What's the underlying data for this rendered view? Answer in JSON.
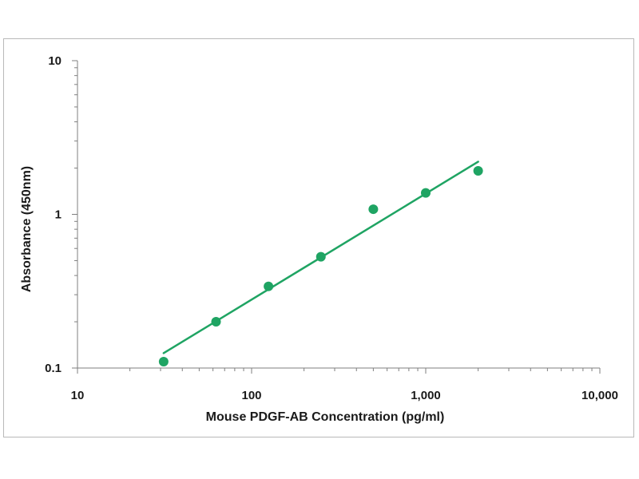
{
  "chart_data": {
    "type": "scatter",
    "title": "",
    "xlabel": "Mouse PDGF-AB Concentration (pg/ml)",
    "ylabel": "Absorbance (450nm)",
    "xscale": "log",
    "yscale": "log",
    "xlim": [
      10,
      10000
    ],
    "ylim": [
      0.1,
      10
    ],
    "x_tick_labels": [
      "10",
      "100",
      "1,000",
      "10,000"
    ],
    "y_tick_labels": [
      "0.1",
      "1",
      "10"
    ],
    "grid": false,
    "legend": "none",
    "color": "#1fa463",
    "series": [
      {
        "x": [
          31.25,
          62.5,
          125,
          250,
          500,
          1000,
          2000
        ],
        "y": [
          0.11,
          0.2,
          0.34,
          0.53,
          1.08,
          1.38,
          1.92
        ]
      }
    ],
    "fit_line": {
      "x": [
        31.25,
        2000
      ],
      "y": [
        0.125,
        2.2
      ]
    }
  }
}
